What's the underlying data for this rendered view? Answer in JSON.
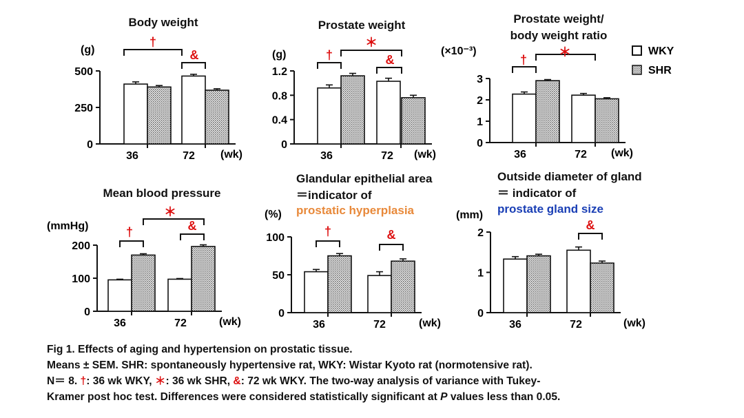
{
  "legend": {
    "wky": "WKY",
    "shr": "SHR",
    "placement": "top-right"
  },
  "colors": {
    "significance": "#dd1111",
    "hyperplasia_text": "#e8893a",
    "gland_size_text": "#1a3fb5",
    "wky_fill": "#ffffff",
    "shr_fill": "stippled-gray"
  },
  "chart_data": [
    {
      "type": "bar",
      "title": [
        "Body weight"
      ],
      "ylabel": "(g)",
      "xlabel": "(wk)",
      "categories": [
        "36",
        "72"
      ],
      "ylim": [
        0,
        500
      ],
      "yticks": [
        0,
        250,
        500
      ],
      "series": [
        {
          "name": "WKY",
          "values": [
            410,
            465
          ],
          "errors": [
            15,
            12
          ]
        },
        {
          "name": "SHR",
          "values": [
            390,
            368
          ],
          "errors": [
            10,
            10
          ]
        }
      ],
      "annotations": [
        {
          "symbol": "†",
          "from": "36-WKY",
          "to": "72-WKY"
        },
        {
          "symbol": "&",
          "from": "72-WKY",
          "to": "72-SHR"
        }
      ]
    },
    {
      "type": "bar",
      "title": [
        "Prostate weight"
      ],
      "ylabel": "(g)",
      "xlabel": "(wk)",
      "categories": [
        "36",
        "72"
      ],
      "ylim": [
        0,
        1.2
      ],
      "yticks": [
        0,
        0.4,
        0.8,
        1.2
      ],
      "series": [
        {
          "name": "WKY",
          "values": [
            0.92,
            1.03
          ],
          "errors": [
            0.05,
            0.05
          ]
        },
        {
          "name": "SHR",
          "values": [
            1.12,
            0.76
          ],
          "errors": [
            0.04,
            0.04
          ]
        }
      ],
      "annotations": [
        {
          "symbol": "†",
          "from": "36-WKY",
          "to": "36-SHR"
        },
        {
          "symbol": "＊",
          "from": "36-SHR",
          "to": "72-SHR"
        },
        {
          "symbol": "&",
          "from": "72-WKY",
          "to": "72-SHR"
        }
      ]
    },
    {
      "type": "bar",
      "title": [
        "Prostate weight/",
        "body weight ratio"
      ],
      "ylabel": "(×10⁻³)",
      "xlabel": "(wk)",
      "categories": [
        "36",
        "72"
      ],
      "ylim": [
        0,
        3
      ],
      "yticks": [
        0,
        1,
        2,
        3
      ],
      "series": [
        {
          "name": "WKY",
          "values": [
            2.27,
            2.22
          ],
          "errors": [
            0.1,
            0.08
          ]
        },
        {
          "name": "SHR",
          "values": [
            2.9,
            2.05
          ],
          "errors": [
            0.05,
            0.05
          ]
        }
      ],
      "annotations": [
        {
          "symbol": "†",
          "from": "36-WKY",
          "to": "36-SHR"
        },
        {
          "symbol": "＊",
          "from": "36-SHR",
          "to": "72-SHR"
        }
      ]
    },
    {
      "type": "bar",
      "title": [
        "Mean blood pressure"
      ],
      "ylabel": "(mmHg)",
      "xlabel": "(wk)",
      "categories": [
        "36",
        "72"
      ],
      "ylim": [
        0,
        200
      ],
      "yticks": [
        0,
        100,
        200
      ],
      "series": [
        {
          "name": "WKY",
          "values": [
            95,
            97
          ],
          "errors": [
            2,
            2
          ]
        },
        {
          "name": "SHR",
          "values": [
            170,
            196
          ],
          "errors": [
            4,
            5
          ]
        }
      ],
      "annotations": [
        {
          "symbol": "†",
          "from": "36-WKY",
          "to": "36-SHR"
        },
        {
          "symbol": "＊",
          "from": "36-SHR",
          "to": "72-SHR"
        },
        {
          "symbol": "&",
          "from": "72-WKY",
          "to": "72-SHR"
        }
      ]
    },
    {
      "type": "bar",
      "title": [
        "Glandular epithelial area",
        "＝indicator of",
        "prostatic hyperplasia"
      ],
      "ylabel": "(%)",
      "xlabel": "(wk)",
      "categories": [
        "36",
        "72"
      ],
      "ylim": [
        0,
        100
      ],
      "yticks": [
        0,
        50,
        100
      ],
      "series": [
        {
          "name": "WKY",
          "values": [
            54,
            49
          ],
          "errors": [
            3,
            5
          ]
        },
        {
          "name": "SHR",
          "values": [
            75,
            68
          ],
          "errors": [
            3,
            3
          ]
        }
      ],
      "annotations": [
        {
          "symbol": "†",
          "from": "36-WKY",
          "to": "36-SHR"
        },
        {
          "symbol": "&",
          "from": "72-WKY",
          "to": "72-SHR"
        }
      ]
    },
    {
      "type": "bar",
      "title": [
        "Outside diameter of gland",
        "＝ indicator of",
        "prostate gland size"
      ],
      "ylabel": "(mm)",
      "xlabel": "(wk)",
      "categories": [
        "36",
        "72"
      ],
      "ylim": [
        0,
        2
      ],
      "yticks": [
        0,
        1,
        2
      ],
      "series": [
        {
          "name": "WKY",
          "values": [
            1.33,
            1.55
          ],
          "errors": [
            0.06,
            0.08
          ]
        },
        {
          "name": "SHR",
          "values": [
            1.41,
            1.23
          ],
          "errors": [
            0.04,
            0.05
          ]
        }
      ],
      "annotations": [
        {
          "symbol": "&",
          "from": "72-WKY",
          "to": "72-SHR"
        }
      ]
    }
  ],
  "caption": {
    "line1": "Fig 1. Effects of aging and hypertension on prostatic tissue.",
    "line2": "Means ± SEM. SHR: spontaneously hypertensive rat, WKY: Wistar Kyoto rat (normotensive rat).",
    "line3_a": "N＝ 8. ",
    "line3_dagger": "†",
    "line3_b": ": 36 wk WKY, ",
    "line3_star": "＊",
    "line3_c": ": 36 wk SHR, ",
    "line3_amp": "&",
    "line3_d": ": 72 wk WKY. The two-way analysis of variance with Tukey-",
    "line4_a": "Kramer post hoc test.  Differences were considered statistically significant at ",
    "line4_p": "P",
    "line4_b": " values less than 0.05."
  }
}
